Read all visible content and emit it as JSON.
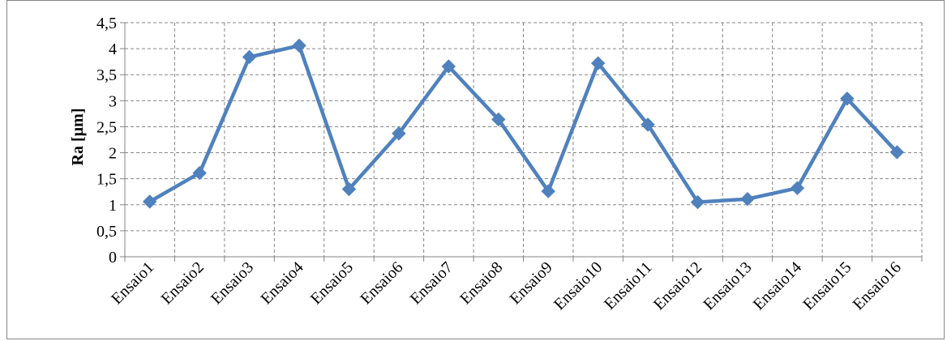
{
  "chart_data": {
    "type": "line",
    "title": "",
    "xlabel": "",
    "ylabel": "Ra [µm]",
    "ylim": [
      0,
      4.5
    ],
    "ytick_step": 0.5,
    "yticks": [
      "0",
      "0,5",
      "1",
      "1,5",
      "2",
      "2,5",
      "3",
      "3,5",
      "4",
      "4,5"
    ],
    "grid": true,
    "grid_style": "dashed",
    "legend": "none",
    "marker": "diamond",
    "line_color": "#4F81BD",
    "categories": [
      "Ensaio1",
      "Ensaio2",
      "Ensaio3",
      "Ensaio4",
      "Ensaio5",
      "Ensaio6",
      "Ensaio7",
      "Ensaio8",
      "Ensaio9",
      "Ensaio10",
      "Ensaio11",
      "Ensaio12",
      "Ensaio13",
      "Ensaio14",
      "Ensaio15",
      "Ensaio16"
    ],
    "series": [
      {
        "values": [
          1.06,
          1.61,
          3.84,
          4.06,
          1.3,
          2.37,
          3.66,
          2.64,
          1.26,
          3.72,
          2.54,
          1.05,
          1.11,
          1.32,
          3.04,
          2.01
        ]
      }
    ]
  }
}
